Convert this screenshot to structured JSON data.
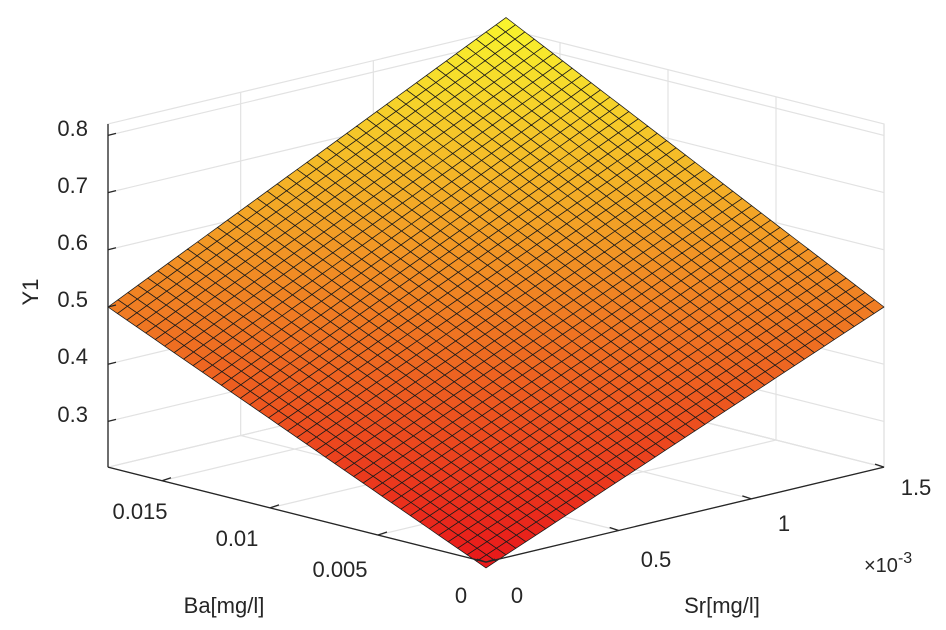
{
  "chart_data": {
    "type": "surface",
    "zlabel": "Y1",
    "xlabel": "Sr[mg/l]",
    "ylabel": "Ba[mg/l]",
    "x_multiplier": "×10",
    "x_multiplier_exponent": "-3",
    "xlim": [
      0,
      0.0015
    ],
    "ylim": [
      0,
      0.0175
    ],
    "zlim": [
      0.22,
      0.82
    ],
    "x_ticks": [
      0,
      0.0005,
      0.001,
      0.0015
    ],
    "x_tick_labels": [
      "0",
      "0.5",
      "1",
      "1.5"
    ],
    "y_ticks": [
      0,
      0.005,
      0.01,
      0.015
    ],
    "y_tick_labels": [
      "0",
      "0.005",
      "0.01",
      "0.015"
    ],
    "z_ticks": [
      0.3,
      0.4,
      0.5,
      0.6,
      0.7,
      0.8
    ],
    "z_tick_labels": [
      "0.3",
      "0.4",
      "0.5",
      "0.6",
      "0.7",
      "0.8"
    ],
    "grid": true,
    "colormap": "autumn",
    "colormap_colors": [
      "#e8161a",
      "#f9f62d"
    ],
    "mesh_color": "#1a1a1a",
    "corner_values": {
      "x0_y0": 0.21,
      "x1_y0": 0.5,
      "x0_y1": 0.5,
      "x1_y1": 0.84
    },
    "grid_resolution": 40
  }
}
